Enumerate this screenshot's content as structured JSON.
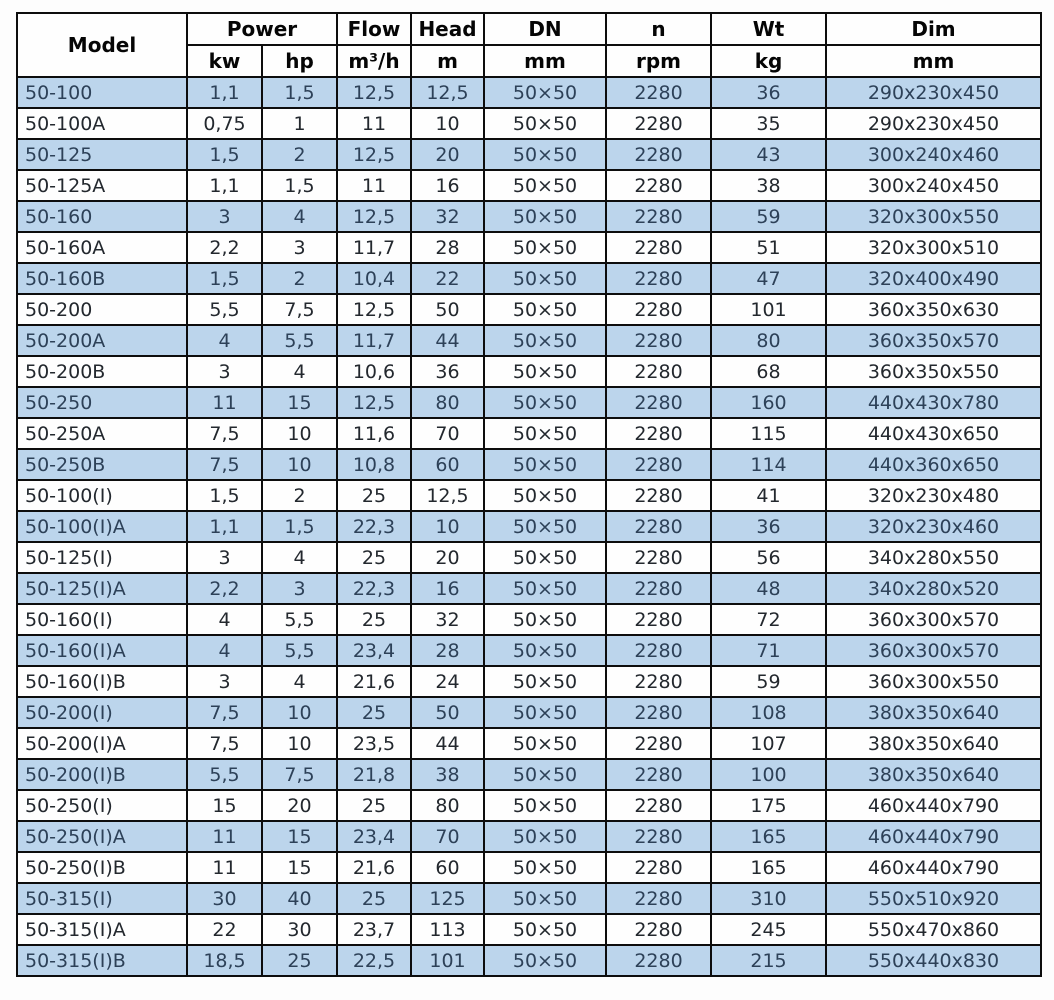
{
  "table": {
    "header": {
      "model": "Model",
      "power": "Power",
      "flow": "Flow",
      "head": "Head",
      "dn": "DN",
      "n": "n",
      "wt": "Wt",
      "dim": "Dim"
    },
    "units": {
      "kw": "kw",
      "hp": "hp",
      "flow": "m³/h",
      "head": "m",
      "dn": "mm",
      "n": "rpm",
      "wt": "kg",
      "dim": "mm"
    },
    "columns": [
      "Model",
      "Power kw",
      "Power hp",
      "Flow m³/h",
      "Head m",
      "DN mm",
      "n rpm",
      "Wt kg",
      "Dim mm"
    ],
    "rows": [
      [
        "50-100",
        "1,1",
        "1,5",
        "12,5",
        "12,5",
        "50×50",
        "2280",
        "36",
        "290x230x450"
      ],
      [
        "50-100A",
        "0,75",
        "1",
        "11",
        "10",
        "50×50",
        "2280",
        "35",
        "290x230x450"
      ],
      [
        "50-125",
        "1,5",
        "2",
        "12,5",
        "20",
        "50×50",
        "2280",
        "43",
        "300x240x460"
      ],
      [
        "50-125A",
        "1,1",
        "1,5",
        "11",
        "16",
        "50×50",
        "2280",
        "38",
        "300x240x450"
      ],
      [
        "50-160",
        "3",
        "4",
        "12,5",
        "32",
        "50×50",
        "2280",
        "59",
        "320x300x550"
      ],
      [
        "50-160A",
        "2,2",
        "3",
        "11,7",
        "28",
        "50×50",
        "2280",
        "51",
        "320x300x510"
      ],
      [
        "50-160B",
        "1,5",
        "2",
        "10,4",
        "22",
        "50×50",
        "2280",
        "47",
        "320x400x490"
      ],
      [
        "50-200",
        "5,5",
        "7,5",
        "12,5",
        "50",
        "50×50",
        "2280",
        "101",
        "360x350x630"
      ],
      [
        "50-200A",
        "4",
        "5,5",
        "11,7",
        "44",
        "50×50",
        "2280",
        "80",
        "360x350x570"
      ],
      [
        "50-200B",
        "3",
        "4",
        "10,6",
        "36",
        "50×50",
        "2280",
        "68",
        "360x350x550"
      ],
      [
        "50-250",
        "11",
        "15",
        "12,5",
        "80",
        "50×50",
        "2280",
        "160",
        "440x430x780"
      ],
      [
        "50-250A",
        "7,5",
        "10",
        "11,6",
        "70",
        "50×50",
        "2280",
        "115",
        "440x430x650"
      ],
      [
        "50-250B",
        "7,5",
        "10",
        "10,8",
        "60",
        "50×50",
        "2280",
        "114",
        "440x360x650"
      ],
      [
        "50-100(I)",
        "1,5",
        "2",
        "25",
        "12,5",
        "50×50",
        "2280",
        "41",
        "320x230x480"
      ],
      [
        "50-100(I)A",
        "1,1",
        "1,5",
        "22,3",
        "10",
        "50×50",
        "2280",
        "36",
        "320x230x460"
      ],
      [
        "50-125(I)",
        "3",
        "4",
        "25",
        "20",
        "50×50",
        "2280",
        "56",
        "340x280x550"
      ],
      [
        "50-125(I)A",
        "2,2",
        "3",
        "22,3",
        "16",
        "50×50",
        "2280",
        "48",
        "340x280x520"
      ],
      [
        "50-160(I)",
        "4",
        "5,5",
        "25",
        "32",
        "50×50",
        "2280",
        "72",
        "360x300x570"
      ],
      [
        "50-160(I)A",
        "4",
        "5,5",
        "23,4",
        "28",
        "50×50",
        "2280",
        "71",
        "360x300x570"
      ],
      [
        "50-160(I)B",
        "3",
        "4",
        "21,6",
        "24",
        "50×50",
        "2280",
        "59",
        "360x300x550"
      ],
      [
        "50-200(I)",
        "7,5",
        "10",
        "25",
        "50",
        "50×50",
        "2280",
        "108",
        "380x350x640"
      ],
      [
        "50-200(I)A",
        "7,5",
        "10",
        "23,5",
        "44",
        "50×50",
        "2280",
        "107",
        "380x350x640"
      ],
      [
        "50-200(I)B",
        "5,5",
        "7,5",
        "21,8",
        "38",
        "50×50",
        "2280",
        "100",
        "380x350x640"
      ],
      [
        "50-250(I)",
        "15",
        "20",
        "25",
        "80",
        "50×50",
        "2280",
        "175",
        "460x440x790"
      ],
      [
        "50-250(I)A",
        "11",
        "15",
        "23,4",
        "70",
        "50×50",
        "2280",
        "165",
        "460x440x790"
      ],
      [
        "50-250(I)B",
        "11",
        "15",
        "21,6",
        "60",
        "50×50",
        "2280",
        "165",
        "460x440x790"
      ],
      [
        "50-315(I)",
        "30",
        "40",
        "25",
        "125",
        "50×50",
        "2280",
        "310",
        "550x510x920"
      ],
      [
        "50-315(I)A",
        "22",
        "30",
        "23,7",
        "113",
        "50×50",
        "2280",
        "245",
        "550x470x860"
      ],
      [
        "50-315(I)B",
        "18,5",
        "25",
        "22,5",
        "101",
        "50×50",
        "2280",
        "215",
        "550x440x830"
      ]
    ]
  },
  "colors": {
    "stripe_background": "#bcd5ec",
    "stripe_text": "#2d4158",
    "plain_background": "#fefefe",
    "plain_text": "#23282e",
    "border": "#0d0d0d",
    "header_text": "#050505"
  }
}
